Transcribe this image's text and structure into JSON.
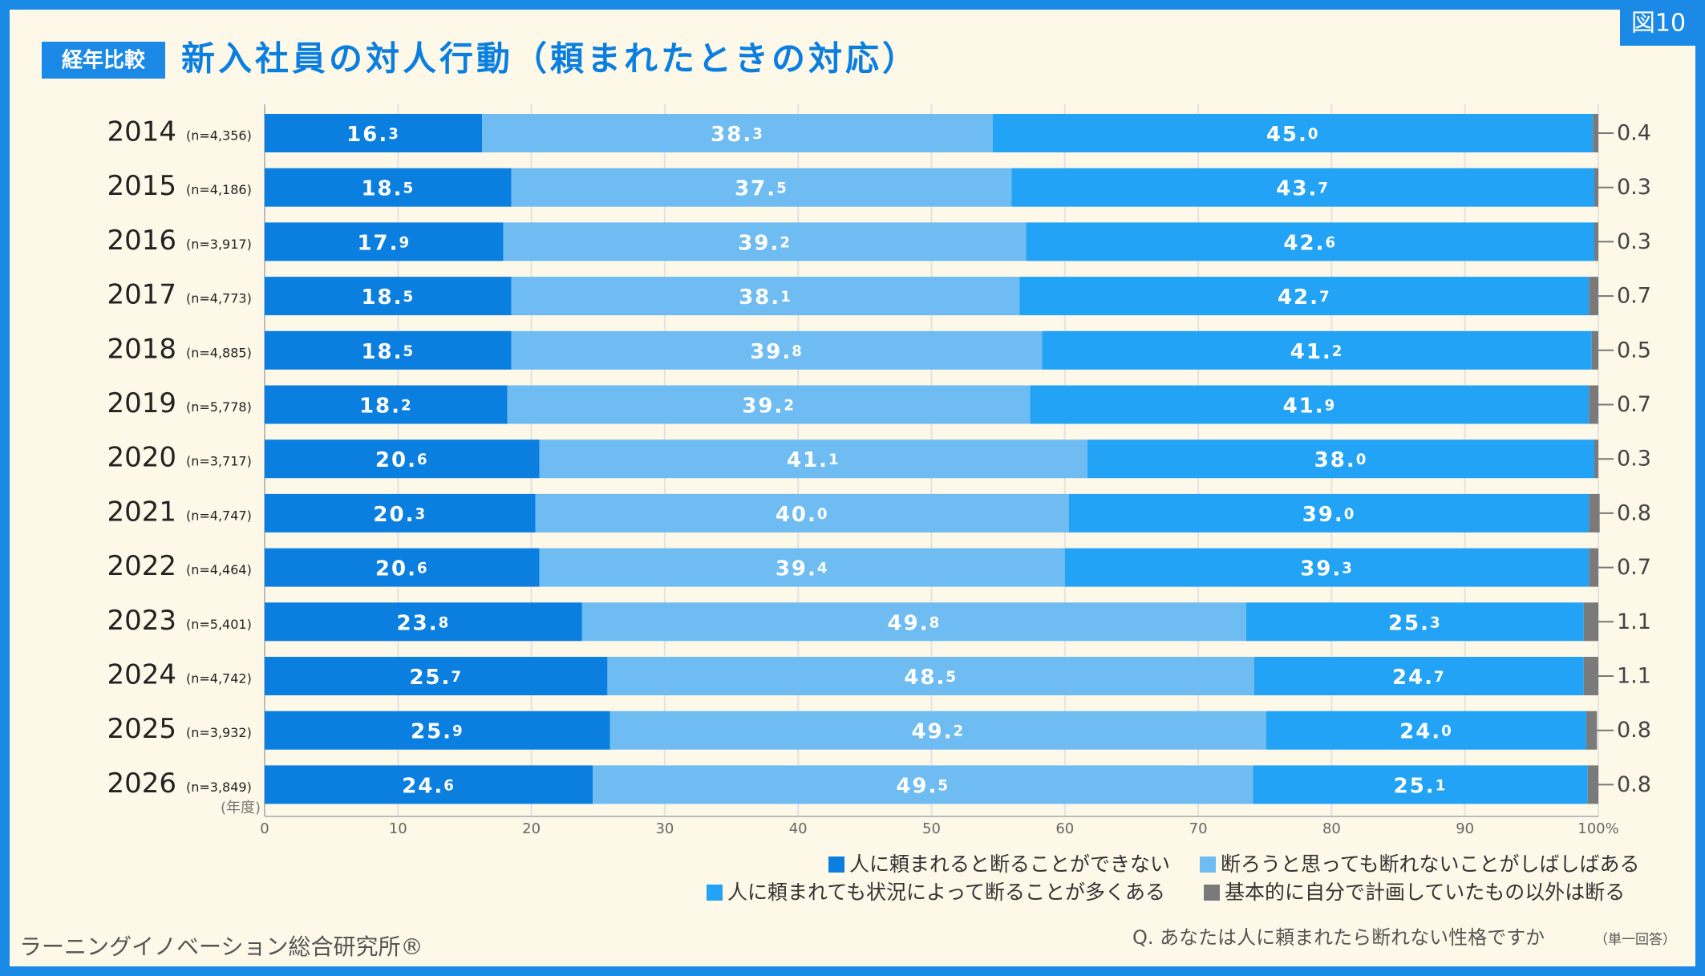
{
  "chart_data": {
    "type": "stacked-barh",
    "badge": "経年比較",
    "title": "新入社員の対人行動（頼まれたときの対応）",
    "figure_label": "図10",
    "categories": [
      "2014",
      "2015",
      "2016",
      "2017",
      "2018",
      "2019",
      "2020",
      "2021",
      "2022",
      "2023",
      "2024",
      "2025",
      "2026"
    ],
    "sample_sizes": [
      "(n=4,356)",
      "(n=4,186)",
      "(n=3,917)",
      "(n=4,773)",
      "(n=4,885)",
      "(n=5,778)",
      "(n=3,717)",
      "(n=4,747)",
      "(n=4,464)",
      "(n=5,401)",
      "(n=4,742)",
      "(n=3,932)",
      "(n=3,849)"
    ],
    "y_label": "(年度)",
    "series": [
      {
        "name": "人に頼まれると断ることができない",
        "color": "#0a7fe0",
        "values": [
          16.3,
          18.5,
          17.9,
          18.5,
          18.5,
          18.2,
          20.6,
          20.3,
          20.6,
          23.8,
          25.7,
          25.9,
          24.6
        ]
      },
      {
        "name": "断ろうと思っても断れないことがしばしばある",
        "color": "#6fbcf2",
        "values": [
          38.3,
          37.5,
          39.2,
          38.1,
          39.8,
          39.2,
          41.1,
          40.0,
          39.4,
          49.8,
          48.5,
          49.2,
          49.5
        ],
        "value_labels": [
          "38.3",
          "37.5",
          "39.2",
          "38.1",
          "39.8",
          "39.2",
          "41.1",
          "40.0",
          "39.4",
          "49.8",
          "48.5",
          "49.2",
          "49.5"
        ]
      },
      {
        "name": "人に頼まれても状況によって断ることが多くある",
        "color": "#22a3f5",
        "values": [
          45.0,
          43.7,
          42.6,
          42.7,
          41.2,
          41.9,
          38.0,
          39.0,
          39.3,
          25.3,
          24.7,
          24.0,
          25.1
        ],
        "value_labels": [
          "45.0",
          "43.7",
          "42.6",
          "42.7",
          "41.2",
          "41.9",
          "38.0",
          "39.0",
          "39.3",
          "25.3",
          "24.7",
          "24.0",
          "25.1"
        ]
      },
      {
        "name": "基本的に自分で計画していたもの以外は断る",
        "color": "#7a7a7a",
        "values": [
          0.4,
          0.3,
          0.3,
          0.7,
          0.5,
          0.7,
          0.3,
          0.8,
          0.7,
          1.1,
          1.1,
          0.8,
          0.8
        ]
      }
    ],
    "xlim": [
      0,
      100
    ],
    "xticks": [
      0,
      10,
      20,
      30,
      40,
      50,
      60,
      70,
      80,
      90,
      {
        "value": 100,
        "label": "100%"
      }
    ],
    "grid": true,
    "source": "ラーニングイノベーション総合研究所®",
    "question": "Q. あなたは人に頼まれたら断れない性格ですか",
    "question_note": "（単一回答）"
  }
}
